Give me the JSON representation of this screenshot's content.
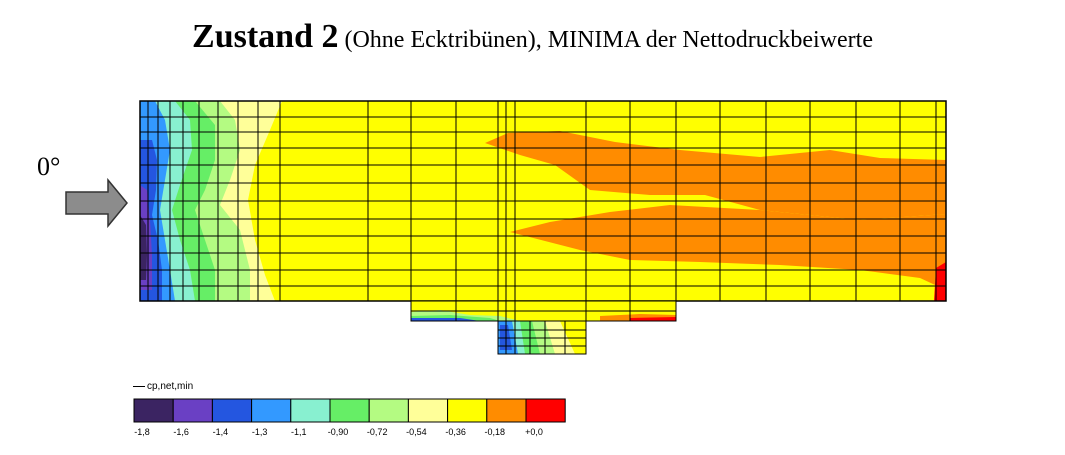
{
  "title": {
    "main": "Zustand 2",
    "sub": " (Ohne Ecktribünen), MINIMA der Nettodruckbeiwerte"
  },
  "wind": {
    "angle_label": "0°",
    "arrow_color": "#8c8c8c"
  },
  "legend": {
    "title": "cp,net,min",
    "colors": [
      "#3b2462",
      "#6a40c4",
      "#2456e0",
      "#3399ff",
      "#88f0d0",
      "#66ee66",
      "#b4fb82",
      "#ffff99",
      "#ffff00",
      "#ff8c00",
      "#ff0000"
    ],
    "ticks": [
      "-1,8",
      "-1,6",
      "-1,4",
      "-1,3",
      "-1,1",
      "-0,90",
      "-0,72",
      "-0,54",
      "-0,36",
      "-0,18",
      "+0,0"
    ]
  }
}
